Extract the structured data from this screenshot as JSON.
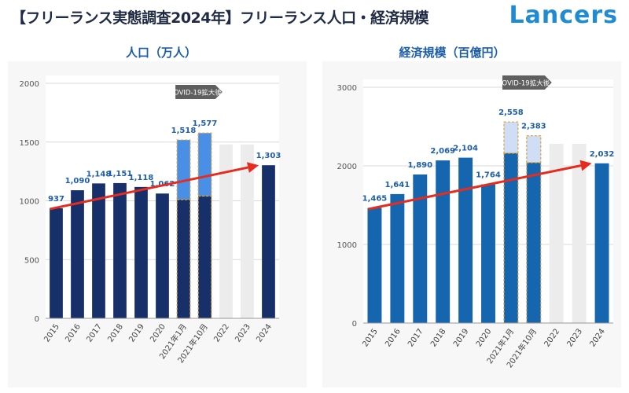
{
  "header": {
    "title": "【フリーランス実態調査2024年】フリーランス人口・経済規模",
    "brand": "Lancers"
  },
  "colors": {
    "title_text": "#1f2a44",
    "brand": "#1f8bd0",
    "chart_title": "#1e5ea8",
    "left_bar": "#17306a",
    "left_highlight": "#4a8fe6",
    "right_bar": "#1566ae",
    "right_highlight": "#cfddf5",
    "ghost_bar": "#ececec",
    "trend_arrow": "#e52c1f",
    "label_blue": "#1e5ea8",
    "covid_tag": "#5f5f5f"
  },
  "chart_data": [
    {
      "type": "bar",
      "title": "人口（万人）",
      "categories": [
        "2015",
        "2016",
        "2017",
        "2018",
        "2019",
        "2020",
        "2021年1月",
        "2021年10月",
        "2022",
        "2023",
        "2024"
      ],
      "values": [
        937,
        1090,
        1148,
        1151,
        1118,
        1062,
        1518,
        1577,
        null,
        null,
        1303
      ],
      "value_labels": [
        "937",
        "1,090",
        "1,148",
        "1,151",
        "1,118",
        "1,062",
        "1,518",
        "1,577",
        "",
        "",
        "1,303"
      ],
      "base_values": [
        937,
        1090,
        1148,
        1151,
        1118,
        1062,
        1010,
        1040,
        null,
        null,
        1303
      ],
      "ghost_values": [
        null,
        null,
        null,
        null,
        null,
        null,
        null,
        null,
        1480,
        1480,
        null
      ],
      "highlight_categories": [
        "2021年1月",
        "2021年10月"
      ],
      "ylim": [
        0,
        2000
      ],
      "yticks": [
        0,
        500,
        1000,
        1500,
        2000
      ],
      "ytick_labels": [
        "0",
        "500",
        "1000",
        "1500",
        "2000"
      ],
      "annotation": "COVID-19拡大後",
      "trend_arrow": {
        "from": [
          "2015",
          930
        ],
        "to": [
          "2024",
          1303
        ]
      },
      "grid": true,
      "legend": "none"
    },
    {
      "type": "bar",
      "title": "経済規模（百億円）",
      "categories": [
        "2015",
        "2016",
        "2017",
        "2018",
        "2019",
        "2020",
        "2021年1月",
        "2021年10月",
        "2022",
        "2023",
        "2024"
      ],
      "values": [
        1465,
        1641,
        1890,
        2069,
        2104,
        1764,
        2558,
        2383,
        null,
        null,
        2032
      ],
      "value_labels": [
        "1,465",
        "1,641",
        "1,890",
        "2,069",
        "2,104",
        "1,764",
        "2,558",
        "2,383",
        "",
        "",
        "2,032"
      ],
      "base_values": [
        1465,
        1641,
        1890,
        2069,
        2104,
        1764,
        2160,
        2040,
        null,
        null,
        2032
      ],
      "ghost_values": [
        null,
        null,
        null,
        null,
        null,
        null,
        null,
        null,
        2280,
        2280,
        null
      ],
      "highlight_categories": [
        "2021年1月",
        "2021年10月"
      ],
      "ylim": [
        0,
        3000
      ],
      "yticks": [
        0,
        1000,
        2000,
        3000
      ],
      "ytick_labels": [
        "0",
        "1000",
        "2000",
        "3000"
      ],
      "annotation": "COVID-19拡大後",
      "trend_arrow": {
        "from": [
          "2015",
          1450
        ],
        "to": [
          "2024",
          2032
        ]
      },
      "grid": true,
      "legend": "none"
    }
  ]
}
